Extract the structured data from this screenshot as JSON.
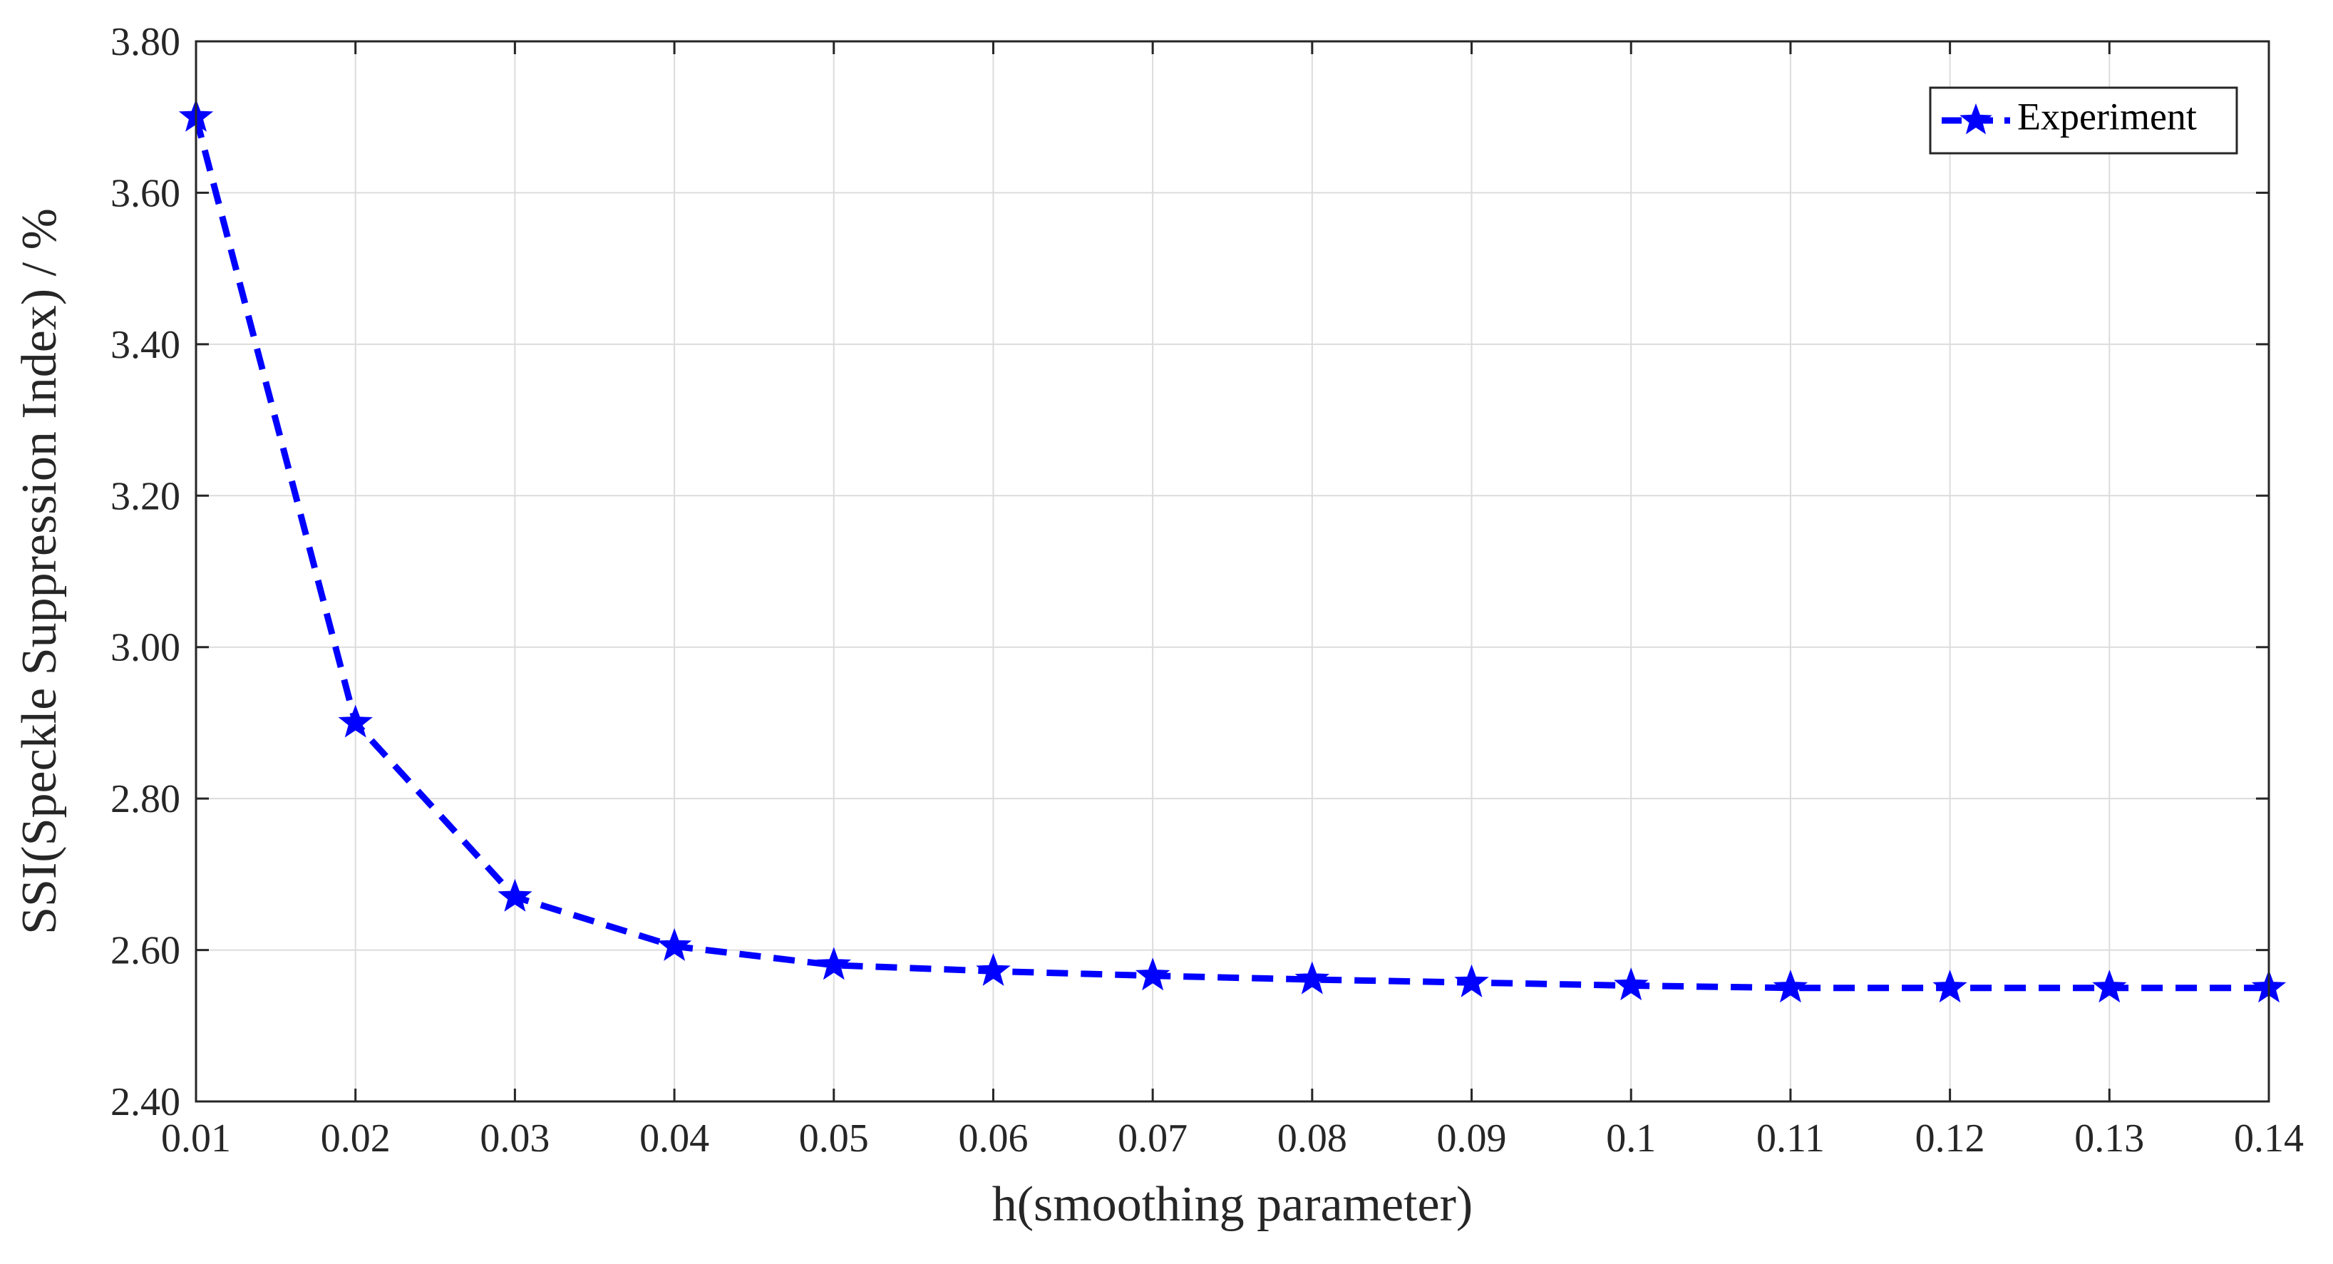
{
  "chart_data": {
    "type": "line",
    "xlabel": "h(smoothing parameter)",
    "ylabel": "SSI(Speckle Suppression Index) / %",
    "xlim": [
      0.01,
      0.14
    ],
    "ylim": [
      2.4,
      3.8
    ],
    "xticks": [
      0.01,
      0.02,
      0.03,
      0.04,
      0.05,
      0.06,
      0.07,
      0.08,
      0.09,
      0.1,
      0.11,
      0.12,
      0.13,
      0.14
    ],
    "xtick_labels": [
      "0.01",
      "0.02",
      "0.03",
      "0.04",
      "0.05",
      "0.06",
      "0.07",
      "0.08",
      "0.09",
      "0.1",
      "0.11",
      "0.12",
      "0.13",
      "0.14"
    ],
    "yticks": [
      2.4,
      2.6,
      2.8,
      3.0,
      3.2,
      3.4,
      3.6,
      3.8
    ],
    "ytick_labels": [
      "2.40",
      "2.60",
      "2.80",
      "3.00",
      "3.20",
      "3.40",
      "3.60",
      "3.80"
    ],
    "grid": true,
    "legend_position": "top-right",
    "series": [
      {
        "name": "Experiment",
        "color": "#0000ff",
        "line_style": "dashed",
        "marker": "star",
        "x": [
          0.01,
          0.02,
          0.03,
          0.04,
          0.05,
          0.06,
          0.07,
          0.08,
          0.09,
          0.1,
          0.11,
          0.12,
          0.13,
          0.14
        ],
        "y": [
          3.7,
          2.9,
          2.67,
          2.605,
          2.58,
          2.572,
          2.566,
          2.561,
          2.557,
          2.553,
          2.55,
          2.55,
          2.55,
          2.55
        ]
      }
    ]
  }
}
